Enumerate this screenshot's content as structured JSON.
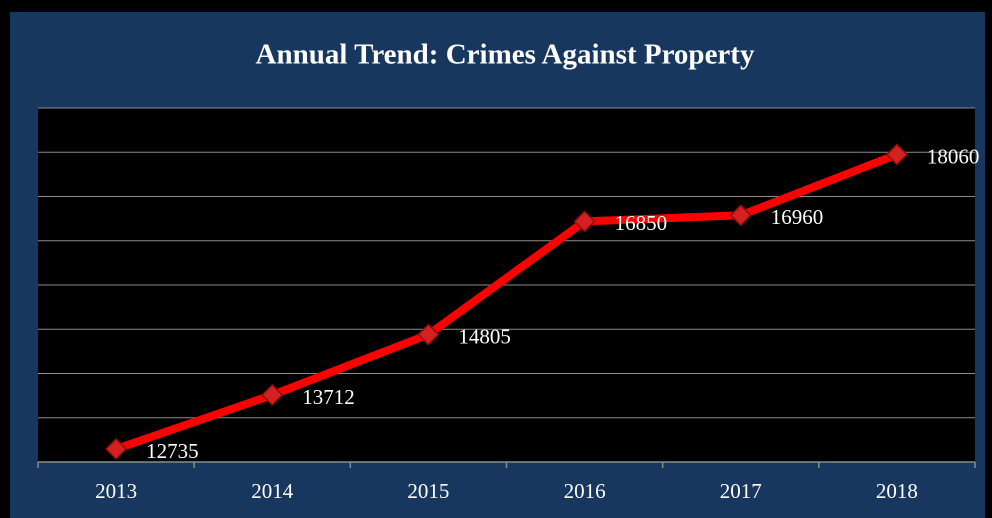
{
  "chart_data": {
    "type": "line",
    "title": "Annual Trend: Crimes Against Property",
    "categories": [
      "2013",
      "2014",
      "2015",
      "2016",
      "2017",
      "2018"
    ],
    "values": [
      12735,
      13712,
      14805,
      16850,
      16960,
      18060
    ],
    "color": "#ff0000",
    "ylim": [
      12500,
      18900
    ],
    "yticks": [
      12500,
      13300,
      14100,
      14900,
      15700,
      16500,
      17300,
      18100,
      18900
    ],
    "grid": true
  }
}
